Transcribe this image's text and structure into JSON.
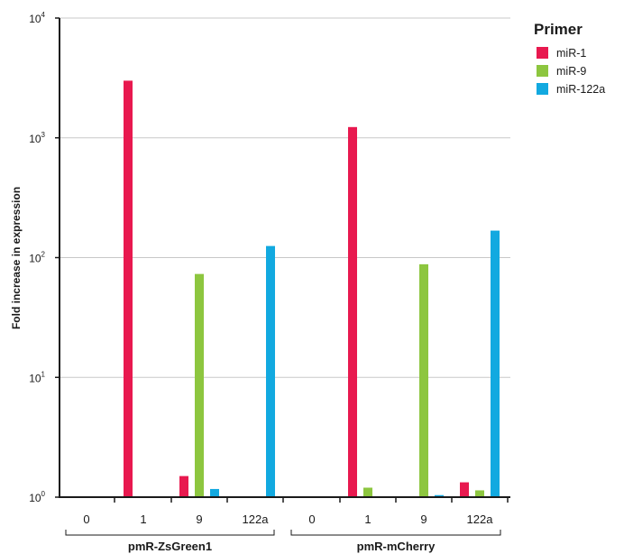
{
  "chart_data": {
    "type": "bar",
    "ylabel": "Fold increase in expression",
    "yscale": "log",
    "ylim": [
      1,
      10000
    ],
    "yticks": [
      {
        "value": 1,
        "base": "10",
        "exp": "0"
      },
      {
        "value": 10,
        "base": "10",
        "exp": "1"
      },
      {
        "value": 100,
        "base": "10",
        "exp": "2"
      },
      {
        "value": 1000,
        "base": "10",
        "exp": "3"
      },
      {
        "value": 10000,
        "base": "10",
        "exp": "4"
      }
    ],
    "grid": true,
    "legend": {
      "title": "Primer",
      "placement": "top-right"
    },
    "groups": [
      {
        "name": "pmR-ZsGreen1",
        "categories": [
          "0",
          "1",
          "9",
          "122a"
        ],
        "series": [
          {
            "name": "miR-1",
            "values": [
              1,
              3000,
              1.5,
              1
            ]
          },
          {
            "name": "miR-9",
            "values": [
              1,
              1,
              73,
              1
            ]
          },
          {
            "name": "miR-122a",
            "values": [
              1,
              1,
              1.17,
              125
            ]
          }
        ]
      },
      {
        "name": "pmR-mCherry",
        "categories": [
          "0",
          "1",
          "9",
          "122a"
        ],
        "series": [
          {
            "name": "miR-1",
            "values": [
              1,
              1230,
              1,
              1.33
            ]
          },
          {
            "name": "miR-9",
            "values": [
              1,
              1.2,
              88,
              1.14
            ]
          },
          {
            "name": "miR-122a",
            "values": [
              1,
              1,
              1.04,
              168
            ]
          }
        ]
      }
    ],
    "colors": {
      "miR-1": "#e8194f",
      "miR-9": "#8dc63f",
      "miR-122a": "#12a9e0"
    }
  }
}
